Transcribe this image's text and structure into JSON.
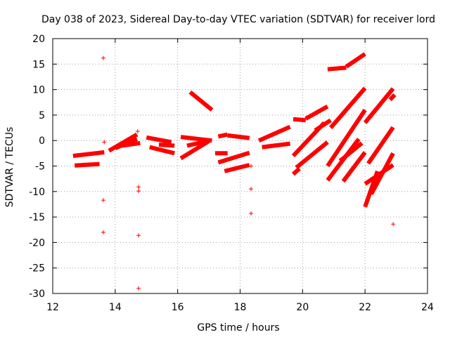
{
  "chart_data": {
    "type": "scatter",
    "title": "Day 038 of 2023, Sidereal Day-to-day VTEC variation (SDTVAR) for receiver lord",
    "xlabel": "GPS time / hours",
    "ylabel": "SDTVAR / TECUs",
    "xlim": [
      12,
      24
    ],
    "ylim": [
      -30,
      20
    ],
    "xticks": [
      "12",
      "14",
      "16",
      "18",
      "20",
      "22",
      "24"
    ],
    "yticks": [
      "20",
      "15",
      "10",
      "5",
      "0",
      "-5",
      "-10",
      "-15",
      "-20",
      "-25",
      "-30"
    ],
    "grid": true,
    "marker": "+",
    "color": "#ff0000",
    "tracks": [
      {
        "x": [
          12.65,
          13.65
        ],
        "y": [
          -3.0,
          -2.3
        ]
      },
      {
        "x": [
          12.7,
          13.5
        ],
        "y": [
          -4.9,
          -4.6
        ]
      },
      {
        "x": [
          13.8,
          14.7
        ],
        "y": [
          -2.0,
          1.2
        ]
      },
      {
        "x": [
          14.0,
          14.7
        ],
        "y": [
          -1.5,
          0.3
        ]
      },
      {
        "x": [
          14.2,
          14.8
        ],
        "y": [
          -1.0,
          -0.5
        ]
      },
      {
        "x": [
          15.0,
          15.8
        ],
        "y": [
          0.6,
          -0.3
        ]
      },
      {
        "x": [
          15.1,
          15.9
        ],
        "y": [
          -1.3,
          -2.5
        ]
      },
      {
        "x": [
          15.4,
          15.9
        ],
        "y": [
          -0.8,
          -1.0
        ]
      },
      {
        "x": [
          16.1,
          17.1
        ],
        "y": [
          0.7,
          0.0
        ]
      },
      {
        "x": [
          16.1,
          17.0
        ],
        "y": [
          -3.5,
          -0.1
        ]
      },
      {
        "x": [
          16.3,
          16.9
        ],
        "y": [
          -1.0,
          -0.2
        ]
      },
      {
        "x": [
          16.4,
          17.1
        ],
        "y": [
          9.5,
          6.0
        ]
      },
      {
        "x": [
          17.3,
          17.6
        ],
        "y": [
          0.8,
          1.2
        ]
      },
      {
        "x": [
          17.6,
          18.3
        ],
        "y": [
          1.0,
          0.5
        ]
      },
      {
        "x": [
          17.2,
          17.6
        ],
        "y": [
          -2.5,
          -2.5
        ]
      },
      {
        "x": [
          17.3,
          18.3
        ],
        "y": [
          -4.3,
          -2.4
        ]
      },
      {
        "x": [
          17.5,
          18.3
        ],
        "y": [
          -6.0,
          -4.8
        ]
      },
      {
        "x": [
          18.6,
          19.6
        ],
        "y": [
          0.0,
          2.7
        ]
      },
      {
        "x": [
          18.7,
          19.6
        ],
        "y": [
          -1.3,
          -0.6
        ]
      },
      {
        "x": [
          19.7,
          20.1
        ],
        "y": [
          4.2,
          4.0
        ]
      },
      {
        "x": [
          20.1,
          20.8
        ],
        "y": [
          4.3,
          6.7
        ]
      },
      {
        "x": [
          19.7,
          20.7
        ],
        "y": [
          -3.0,
          3.5
        ]
      },
      {
        "x": [
          19.8,
          20.8
        ],
        "y": [
          -5.3,
          -0.3
        ]
      },
      {
        "x": [
          19.7,
          19.9
        ],
        "y": [
          -6.6,
          -5.5
        ]
      },
      {
        "x": [
          20.4,
          20.9
        ],
        "y": [
          2.0,
          4.0
        ]
      },
      {
        "x": [
          20.8,
          21.4
        ],
        "y": [
          14.0,
          14.3
        ]
      },
      {
        "x": [
          21.4,
          22.0
        ],
        "y": [
          14.5,
          17.0
        ]
      },
      {
        "x": [
          20.9,
          22.0
        ],
        "y": [
          2.5,
          10.3
        ]
      },
      {
        "x": [
          20.8,
          22.0
        ],
        "y": [
          -5.0,
          6.0
        ]
      },
      {
        "x": [
          20.8,
          21.8
        ],
        "y": [
          -7.8,
          0.3
        ]
      },
      {
        "x": [
          21.2,
          21.9
        ],
        "y": [
          -4.0,
          -0.5
        ]
      },
      {
        "x": [
          21.3,
          22.0
        ],
        "y": [
          -8.0,
          -2.3
        ]
      },
      {
        "x": [
          22.0,
          22.9
        ],
        "y": [
          3.5,
          10.2
        ]
      },
      {
        "x": [
          22.1,
          22.9
        ],
        "y": [
          -4.5,
          2.6
        ]
      },
      {
        "x": [
          22.0,
          22.9
        ],
        "y": [
          -8.5,
          -4.8
        ]
      },
      {
        "x": [
          22.0,
          22.4
        ],
        "y": [
          -13.0,
          -6.0
        ]
      },
      {
        "x": [
          22.2,
          22.9
        ],
        "y": [
          -10.5,
          -2.5
        ]
      },
      {
        "x": [
          22.8,
          22.95
        ],
        "y": [
          8.0,
          9.0
        ]
      }
    ],
    "points": [
      {
        "x": 13.62,
        "y": 16.2
      },
      {
        "x": 13.65,
        "y": -0.3
      },
      {
        "x": 13.62,
        "y": -11.7
      },
      {
        "x": 13.62,
        "y": -18.0
      },
      {
        "x": 14.72,
        "y": 1.8
      },
      {
        "x": 14.75,
        "y": -9.1
      },
      {
        "x": 14.75,
        "y": -9.9
      },
      {
        "x": 14.75,
        "y": -18.6
      },
      {
        "x": 14.75,
        "y": -29.0
      },
      {
        "x": 18.35,
        "y": -5.0
      },
      {
        "x": 18.35,
        "y": -9.5
      },
      {
        "x": 18.35,
        "y": -14.3
      },
      {
        "x": 22.9,
        "y": -16.4
      }
    ]
  }
}
